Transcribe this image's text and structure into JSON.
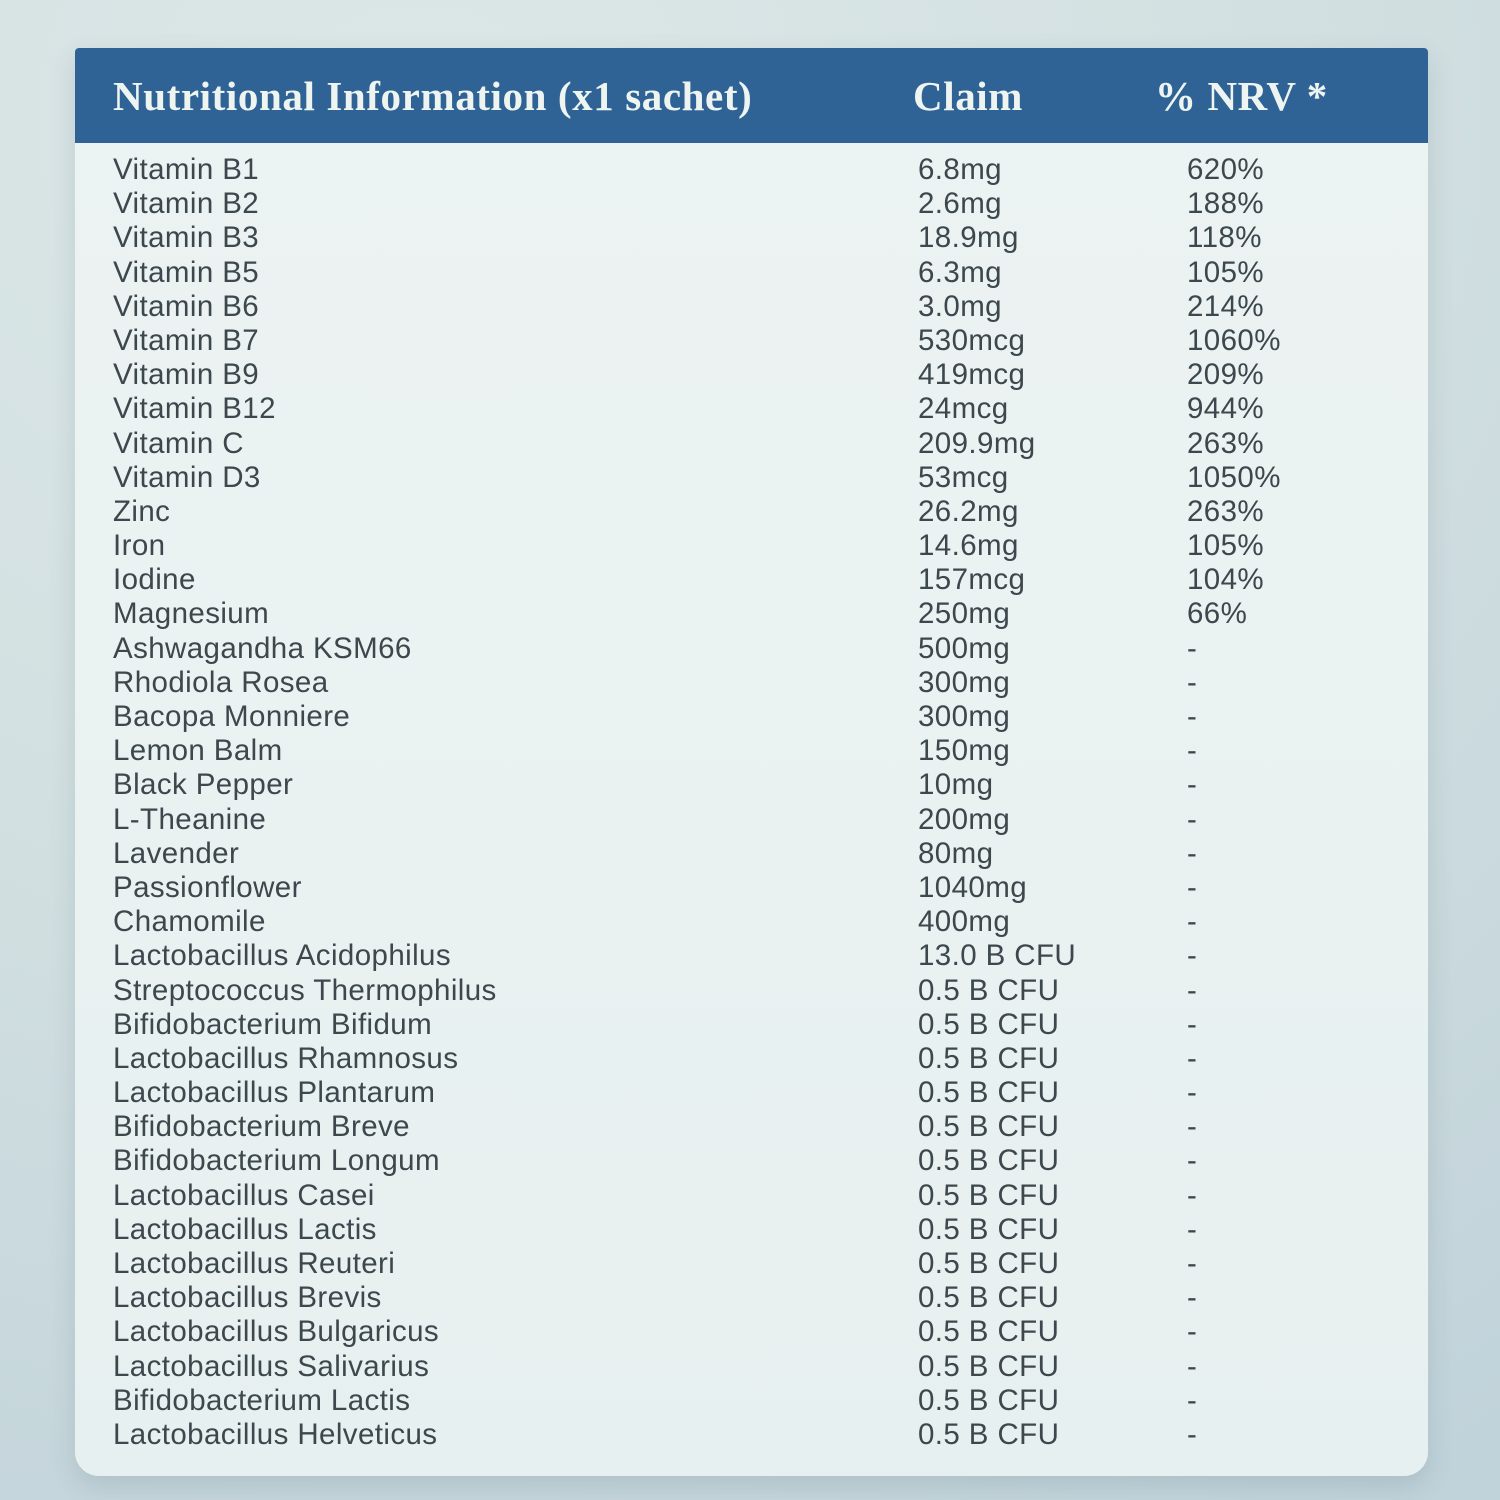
{
  "colors": {
    "header_bg": "#2f6396",
    "header_text": "#eef5f1",
    "panel_bg": "#eaf1f1",
    "body_text": "#3c484d",
    "page_bg": "#cddde0"
  },
  "table": {
    "header": {
      "name": "Nutritional Information (x1 sachet)",
      "claim": "Claim",
      "nrv": "% NRV *"
    },
    "rows": [
      {
        "name": "Vitamin B1",
        "claim": "6.8mg",
        "nrv": "620%"
      },
      {
        "name": "Vitamin B2",
        "claim": "2.6mg",
        "nrv": "188%"
      },
      {
        "name": "Vitamin B3",
        "claim": "18.9mg",
        "nrv": "118%"
      },
      {
        "name": "Vitamin B5",
        "claim": "6.3mg",
        "nrv": "105%"
      },
      {
        "name": "Vitamin B6",
        "claim": "3.0mg",
        "nrv": "214%"
      },
      {
        "name": "Vitamin B7",
        "claim": "530mcg",
        "nrv": "1060%"
      },
      {
        "name": "Vitamin B9",
        "claim": "419mcg",
        "nrv": "209%"
      },
      {
        "name": "Vitamin B12",
        "claim": "24mcg",
        "nrv": "944%"
      },
      {
        "name": "Vitamin C",
        "claim": "209.9mg",
        "nrv": "263%"
      },
      {
        "name": "Vitamin D3",
        "claim": "53mcg",
        "nrv": "1050%"
      },
      {
        "name": "Zinc",
        "claim": "26.2mg",
        "nrv": "263%"
      },
      {
        "name": "Iron",
        "claim": "14.6mg",
        "nrv": "105%"
      },
      {
        "name": "Iodine",
        "claim": "157mcg",
        "nrv": "104%"
      },
      {
        "name": "Magnesium",
        "claim": "250mg",
        "nrv": "66%"
      },
      {
        "name": "Ashwagandha KSM66",
        "claim": "500mg",
        "nrv": "-"
      },
      {
        "name": "Rhodiola Rosea",
        "claim": "300mg",
        "nrv": "-"
      },
      {
        "name": "Bacopa Monniere",
        "claim": "300mg",
        "nrv": "-"
      },
      {
        "name": "Lemon Balm",
        "claim": "150mg",
        "nrv": "-"
      },
      {
        "name": "Black Pepper",
        "claim": "10mg",
        "nrv": "-"
      },
      {
        "name": "L-Theanine",
        "claim": "200mg",
        "nrv": "-"
      },
      {
        "name": "Lavender",
        "claim": "80mg",
        "nrv": "-"
      },
      {
        "name": "Passionflower",
        "claim": "1040mg",
        "nrv": "-"
      },
      {
        "name": "Chamomile",
        "claim": "400mg",
        "nrv": "-"
      },
      {
        "name": "Lactobacillus Acidophilus",
        "claim": "13.0 B CFU",
        "nrv": "-"
      },
      {
        "name": "Streptococcus Thermophilus",
        "claim": "0.5 B CFU",
        "nrv": "-"
      },
      {
        "name": "Bifidobacterium Bifidum",
        "claim": "0.5 B CFU",
        "nrv": "-"
      },
      {
        "name": "Lactobacillus Rhamnosus",
        "claim": "0.5 B CFU",
        "nrv": "-"
      },
      {
        "name": "Lactobacillus Plantarum",
        "claim": "0.5 B CFU",
        "nrv": "-"
      },
      {
        "name": "Bifidobacterium Breve",
        "claim": "0.5 B CFU",
        "nrv": "-"
      },
      {
        "name": "Bifidobacterium Longum",
        "claim": "0.5 B CFU",
        "nrv": "-"
      },
      {
        "name": "Lactobacillus Casei",
        "claim": "0.5 B CFU",
        "nrv": "-"
      },
      {
        "name": "Lactobacillus Lactis",
        "claim": "0.5 B CFU",
        "nrv": "-"
      },
      {
        "name": "Lactobacillus Reuteri",
        "claim": "0.5 B CFU",
        "nrv": "-"
      },
      {
        "name": "Lactobacillus Brevis",
        "claim": "0.5 B CFU",
        "nrv": "-"
      },
      {
        "name": "Lactobacillus Bulgaricus",
        "claim": "0.5 B CFU",
        "nrv": "-"
      },
      {
        "name": "Lactobacillus Salivarius",
        "claim": "0.5 B CFU",
        "nrv": "-"
      },
      {
        "name": "Bifidobacterium Lactis",
        "claim": "0.5 B CFU",
        "nrv": "-"
      },
      {
        "name": "Lactobacillus Helveticus",
        "claim": "0.5 B CFU",
        "nrv": "-"
      }
    ]
  }
}
